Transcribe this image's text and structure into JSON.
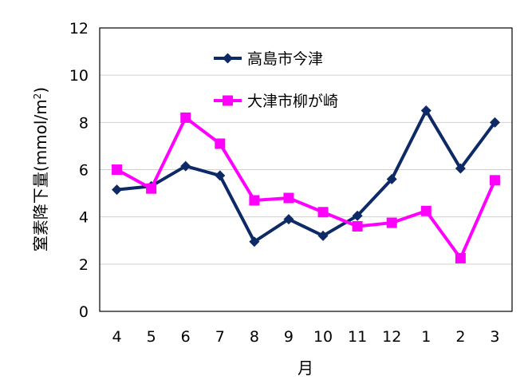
{
  "chart_data": {
    "type": "line",
    "title": "",
    "xlabel": "月",
    "ylabel_main": "窒素降下量(mmol/m",
    "ylabel_sup": "2",
    "ylabel_tail": ")",
    "categories": [
      "4",
      "5",
      "6",
      "7",
      "8",
      "9",
      "10",
      "11",
      "12",
      "1",
      "2",
      "3"
    ],
    "ylim": [
      0,
      12
    ],
    "yticks": [
      0,
      2,
      4,
      6,
      8,
      10,
      12
    ],
    "grid": true,
    "legend_position": "top-center",
    "series": [
      {
        "name": "高島市今津",
        "color": "#0d2a66",
        "marker": "diamond",
        "values": [
          5.15,
          5.3,
          6.15,
          5.75,
          2.95,
          3.9,
          3.2,
          4.05,
          5.6,
          8.5,
          6.05,
          8.0
        ]
      },
      {
        "name": "大津市柳が崎",
        "color": "#ff00ff",
        "marker": "square",
        "values": [
          6.0,
          5.2,
          8.2,
          7.1,
          4.7,
          4.8,
          4.2,
          3.6,
          3.75,
          4.25,
          2.25,
          5.55
        ]
      }
    ]
  }
}
